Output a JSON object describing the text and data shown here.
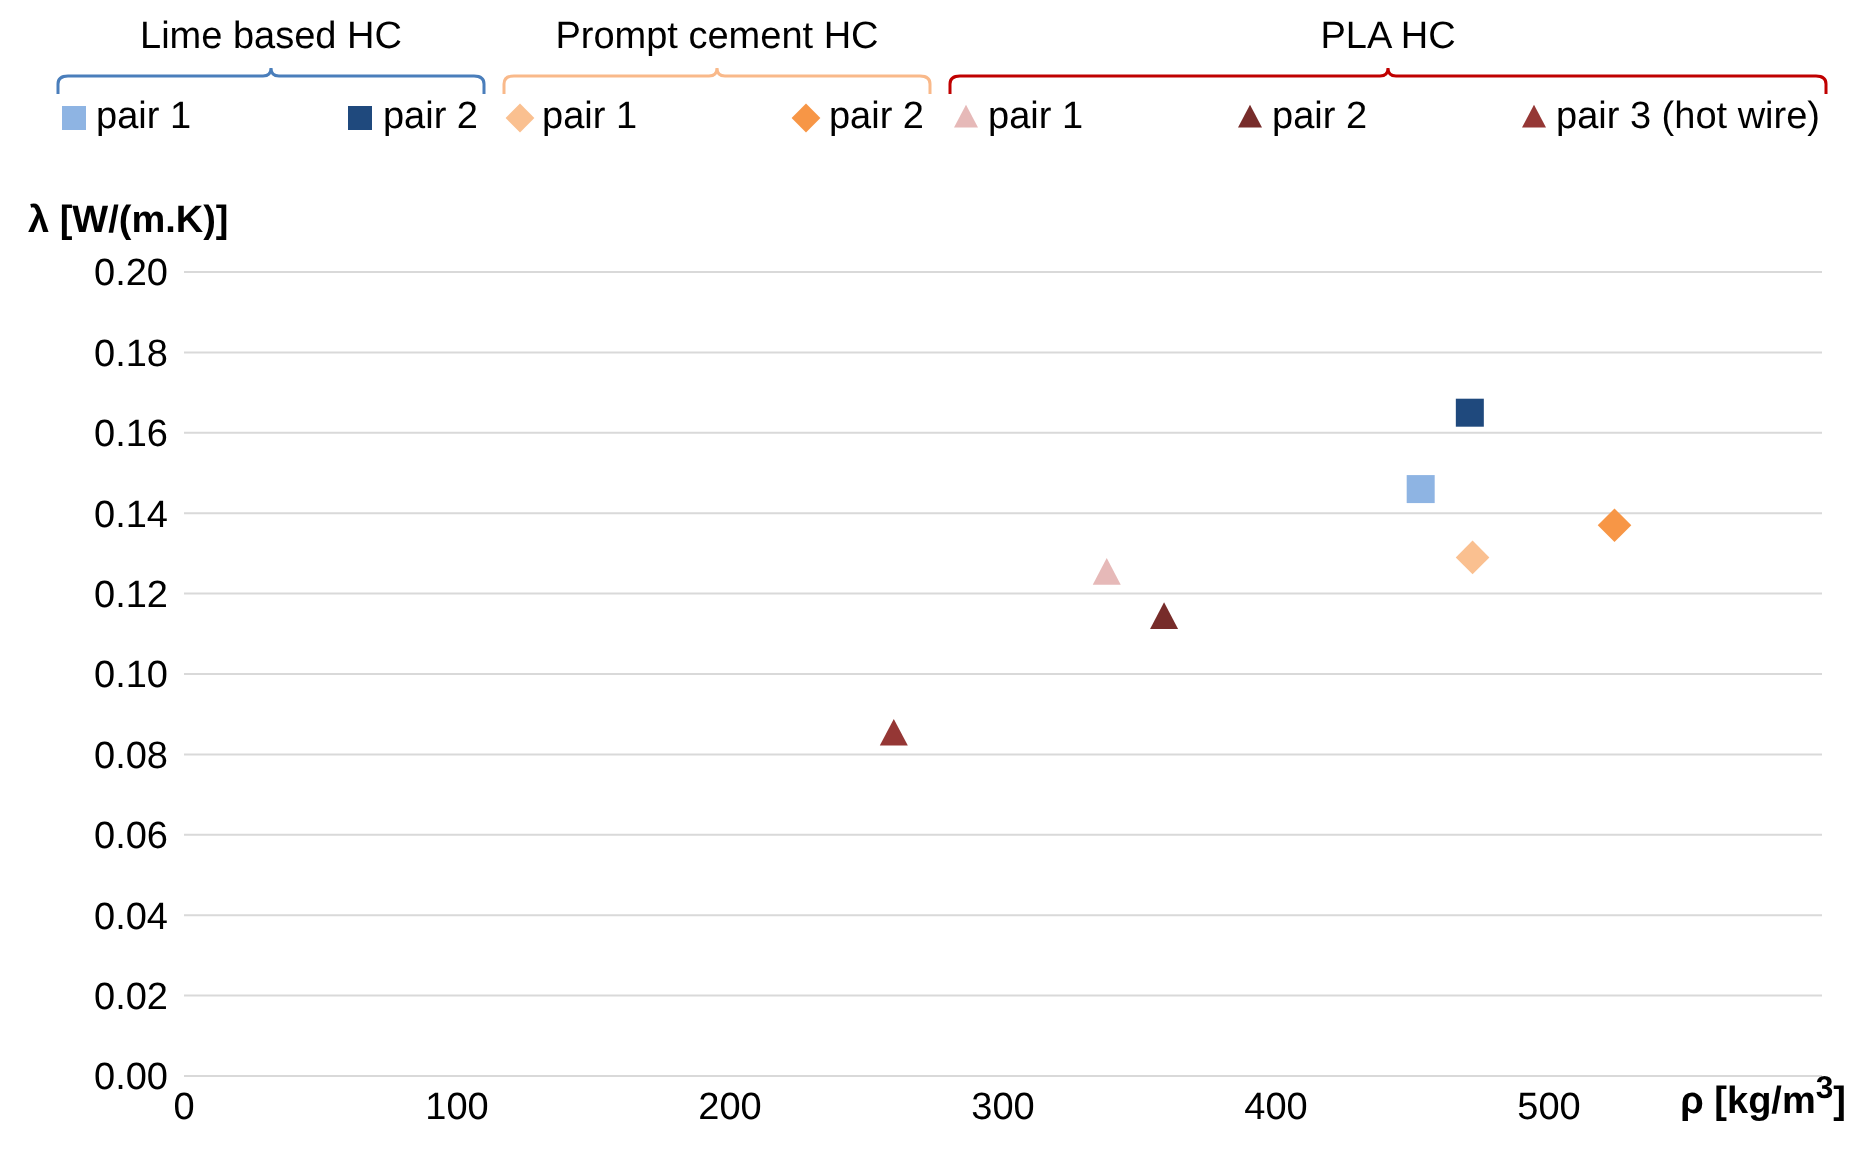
{
  "chart_data": {
    "type": "scatter",
    "xlabel": "ρ [kg/m$^{3}$]",
    "ylabel": "λ [W/(m.K)]",
    "annotations": [
      "Lime based HC",
      "Prompt cement HC",
      "PLA HC"
    ],
    "series": [
      {
        "name": "pair 1",
        "color": "#8eb4e3",
        "marker": "square",
        "x": [
          453
        ],
        "values": [
          0.146
        ]
      },
      {
        "name": "pair 2",
        "color": "#1f497d",
        "marker": "square",
        "x": [
          471
        ],
        "values": [
          0.165
        ]
      },
      {
        "name": "pair 1",
        "color": "#fac090",
        "marker": "diamond",
        "x": [
          472
        ],
        "values": [
          0.129
        ]
      },
      {
        "name": "pair 2",
        "color": "#f79646",
        "marker": "diamond",
        "x": [
          524
        ],
        "values": [
          0.137
        ]
      },
      {
        "name": "pair 1",
        "color": "#e6b9b8",
        "marker": "triangle",
        "x": [
          338
        ],
        "values": [
          0.125
        ]
      },
      {
        "name": "pair 2",
        "color": "#772c2a",
        "marker": "triangle",
        "x": [
          359
        ],
        "values": [
          0.114
        ]
      },
      {
        "name": "pair 3 (hot wire)",
        "color": "#953735",
        "marker": "triangle",
        "x": [
          260
        ],
        "values": [
          0.085
        ]
      }
    ],
    "xlim": [
      0,
      600
    ],
    "xticks": [
      0,
      100,
      200,
      300,
      400,
      500
    ],
    "ylim": [
      0,
      0.2
    ],
    "yticks": [
      {
        "value": 0,
        "label": "0.00"
      },
      {
        "value": 0.02,
        "label": "0.02"
      },
      {
        "value": 0.04,
        "label": "0.04"
      },
      {
        "value": 0.06,
        "label": "0.06"
      },
      {
        "value": 0.08,
        "label": "0.08"
      },
      {
        "value": 0.1,
        "label": "0.10"
      },
      {
        "value": 0.12,
        "label": "0.12"
      },
      {
        "value": 0.14,
        "label": "0.14"
      },
      {
        "value": 0.16,
        "label": "0.16"
      },
      {
        "value": 0.18,
        "label": "0.18"
      },
      {
        "value": 0.2,
        "label": "0.20"
      }
    ],
    "grid": "y",
    "legend": "top"
  }
}
